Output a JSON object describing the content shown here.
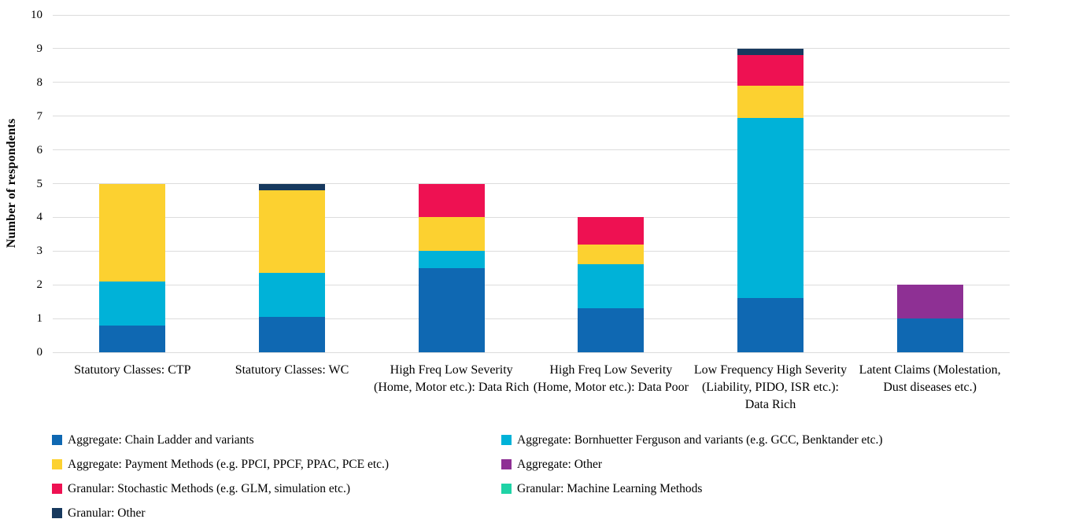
{
  "chart_data": {
    "type": "bar",
    "stacked": true,
    "title": "",
    "xlabel": "",
    "ylabel": "Number of respondents",
    "ylim": [
      0,
      10
    ],
    "ytick_step": 1,
    "yticks": [
      0,
      1,
      2,
      3,
      4,
      5,
      6,
      7,
      8,
      9,
      10
    ],
    "grid": true,
    "gridline_color": "#dcdcdc",
    "background_color": "#ffffff",
    "legend_position": "bottom",
    "legend_columns": 2,
    "categories": [
      "Statutory Classes: CTP",
      "Statutory Classes: WC",
      "High Freq Low Severity (Home, Motor etc.): Data Rich",
      "High Freq Low Severity (Home, Motor etc.): Data Poor",
      "Low Frequency High Severity (Liability, PIDO, ISR etc.): Data Rich",
      "Latent Claims (Molestation, Dust diseases etc.)"
    ],
    "category_totals": [
      5,
      5,
      5,
      4,
      9,
      2
    ],
    "series": [
      {
        "name": "Aggregate: Chain Ladder and variants",
        "color": "#0f68b2",
        "values": [
          0.8,
          1.05,
          2.5,
          1.3,
          1.6,
          1.0
        ]
      },
      {
        "name": "Aggregate: Bornhuetter Ferguson and variants (e.g. GCC, Benktander etc.)",
        "color": "#00b2d8",
        "values": [
          1.3,
          1.3,
          0.5,
          1.3,
          5.35,
          0
        ]
      },
      {
        "name": "Aggregate: Payment Methods (e.g. PPCI, PPCF, PPAC, PCE etc.)",
        "color": "#fcd130",
        "values": [
          2.9,
          2.45,
          1.0,
          0.6,
          0.95,
          0
        ]
      },
      {
        "name": "Aggregate: Other",
        "color": "#8e3094",
        "values": [
          0,
          0,
          0,
          0,
          0,
          1.0
        ]
      },
      {
        "name": "Granular: Stochastic Methods (e.g. GLM, simulation etc.)",
        "color": "#ee1152",
        "values": [
          0,
          0,
          1.0,
          0.8,
          0.9,
          0
        ]
      },
      {
        "name": "Granular: Machine Learning Methods",
        "color": "#1fd3a6",
        "values": [
          0,
          0,
          0,
          0,
          0,
          0
        ]
      },
      {
        "name": "Granular: Other",
        "color": "#17395e",
        "values": [
          0,
          0.2,
          0,
          0,
          0.2,
          0
        ]
      }
    ]
  }
}
